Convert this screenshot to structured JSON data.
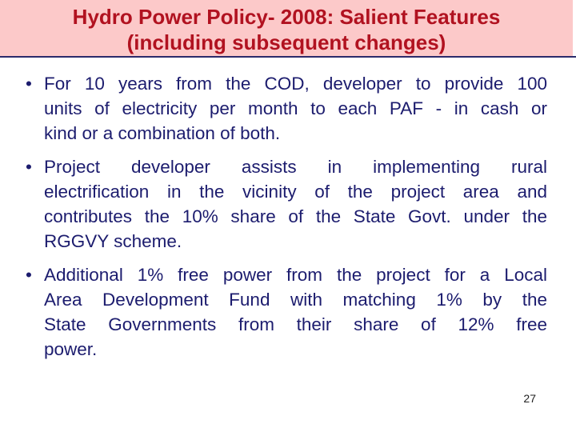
{
  "slide": {
    "title_lines": [
      "Hydro Power Policy- 2008: Salient Features",
      "(including subsequent changes)"
    ],
    "bullet_char": "•",
    "bullets": [
      {
        "lines": [
          "For 10 years from the COD, developer to provide 100",
          "units of electricity per month to each PAF - in cash or",
          "kind or a combination of both."
        ]
      },
      {
        "lines": [
          "Project developer assists in implementing rural",
          "electrification in the vicinity of the project area and",
          "contributes the 10% share of the State Govt. under the",
          "RGGVY scheme."
        ]
      },
      {
        "lines": [
          "Additional 1% free power from the project for a Local",
          "Area Development Fund with matching 1% by the",
          "State Governments from their share of 12% free",
          "power."
        ]
      }
    ],
    "page_number": "27",
    "colors": {
      "header_bg": "#FCC9C9",
      "title_text": "#B11220",
      "body_text": "#1C1C6E",
      "rule": "#2B2B6B",
      "page_number_text": "#222222"
    }
  }
}
